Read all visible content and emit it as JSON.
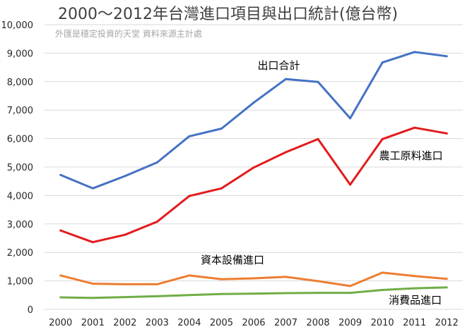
{
  "chart_data": {
    "type": "line",
    "title": "2000～2012年台灣進口項目與出口統計(億台幣)",
    "subtitle": "外匯是穩定投資的天堂 資料來源主計處",
    "xlabel": "",
    "ylabel": "",
    "ylim": [
      0,
      10000
    ],
    "yticks": [
      0,
      1000,
      2000,
      3000,
      4000,
      5000,
      6000,
      7000,
      8000,
      9000,
      10000
    ],
    "ytick_labels": [
      "0",
      "1,000",
      "2,000",
      "3,000",
      "4,000",
      "5,000",
      "6,000",
      "7,000",
      "8,000",
      "9,000",
      "10,000"
    ],
    "grid": true,
    "categories": [
      "2000",
      "2001",
      "2002",
      "2003",
      "2004",
      "2005",
      "2006",
      "2007",
      "2008",
      "2009",
      "2010",
      "2011",
      "2012"
    ],
    "series": [
      {
        "name": "出口合計",
        "color": "#4472c4",
        "values": [
          4720,
          4250,
          4680,
          5160,
          6080,
          6350,
          7260,
          8090,
          7990,
          6710,
          8670,
          9040,
          8890
        ]
      },
      {
        "name": "農工原料進口",
        "color": "#e31a1c",
        "values": [
          2770,
          2360,
          2620,
          3080,
          3980,
          4250,
          4980,
          5520,
          5980,
          4380,
          5980,
          6380,
          6180
        ]
      },
      {
        "name": "資本設備進口",
        "color": "#ed7d31",
        "values": [
          1190,
          900,
          880,
          880,
          1190,
          1060,
          1090,
          1140,
          990,
          820,
          1290,
          1170,
          1070
        ]
      },
      {
        "name": "消費品進口",
        "color": "#70ad47",
        "values": [
          420,
          400,
          430,
          460,
          500,
          540,
          550,
          570,
          580,
          580,
          680,
          740,
          770
        ]
      }
    ]
  }
}
